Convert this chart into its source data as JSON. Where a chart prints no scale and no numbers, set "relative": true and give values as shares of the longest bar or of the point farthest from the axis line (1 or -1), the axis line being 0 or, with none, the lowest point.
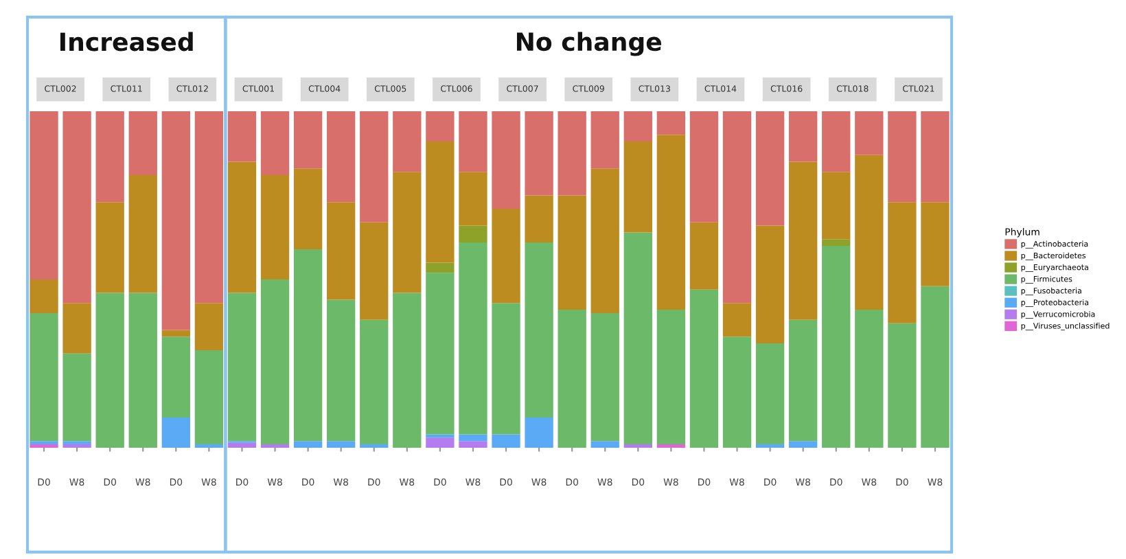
{
  "chart_data": {
    "type": "bar",
    "stacked": true,
    "relative": true,
    "legend": "right",
    "legend_title": "Phylum",
    "categories": [
      "D0",
      "W8",
      "D0",
      "W8",
      "D0",
      "W8",
      "D0",
      "W8",
      "D0",
      "W8",
      "D0",
      "W8",
      "D0",
      "W8",
      "D0",
      "W8",
      "D0",
      "W8",
      "D0",
      "W8",
      "D0",
      "W8",
      "D0",
      "W8",
      "D0",
      "W8",
      "D0",
      "W8"
    ],
    "annotations": [
      "Increased",
      "No change",
      "CTL002",
      "CTL011",
      "CTL012",
      "CTL001",
      "CTL004",
      "CTL005",
      "CTL006",
      "CTL007",
      "CTL009",
      "CTL013",
      "CTL014",
      "CTL016",
      "CTL018",
      "CTL021"
    ],
    "series": [
      {
        "name": "p__Viruses_unclassified",
        "color": "#e066d6",
        "values": [
          0.01,
          null,
          null,
          null,
          null,
          null,
          null,
          null,
          null,
          null,
          null,
          null,
          null,
          null,
          null,
          null,
          null,
          null,
          null,
          0.01,
          null,
          null,
          null,
          null,
          null,
          null,
          null,
          null
        ]
      },
      {
        "name": "p__Verrucomicrobia",
        "color": "#b57cf0",
        "values": [
          null,
          0.01,
          null,
          null,
          null,
          null,
          0.015,
          0.01,
          null,
          null,
          null,
          null,
          0.03,
          0.02,
          null,
          null,
          null,
          null,
          0.01,
          null,
          null,
          null,
          null,
          null,
          null,
          null,
          null,
          null
        ]
      },
      {
        "name": "p__Proteobacteria",
        "color": "#5aaaf5",
        "values": [
          0.01,
          0.01,
          null,
          null,
          0.09,
          0.01,
          0.005,
          null,
          0.02,
          0.02,
          0.01,
          null,
          0.01,
          0.02,
          0.04,
          0.09,
          null,
          0.02,
          null,
          null,
          null,
          null,
          0.01,
          0.02,
          null,
          null,
          null,
          null
        ]
      },
      {
        "name": "p__Fusobacteria",
        "color": "#5bbfbf",
        "values": [
          null,
          null,
          null,
          null,
          null,
          null,
          null,
          null,
          null,
          null,
          null,
          null,
          null,
          null,
          null,
          null,
          null,
          null,
          null,
          null,
          null,
          null,
          null,
          null,
          null,
          null,
          null,
          null
        ]
      },
      {
        "name": "p__Firmicutes",
        "color": "#6db96a",
        "values": [
          0.38,
          0.26,
          0.46,
          0.46,
          0.24,
          0.28,
          0.44,
          0.49,
          0.57,
          0.42,
          0.37,
          0.46,
          0.48,
          0.57,
          0.39,
          0.52,
          0.41,
          0.38,
          0.63,
          0.4,
          0.47,
          0.33,
          0.3,
          0.36,
          0.6,
          0.41,
          0.37,
          0.48
        ]
      },
      {
        "name": "p__Euryarchaeota",
        "color": "#8ea22a",
        "values": [
          null,
          null,
          null,
          null,
          null,
          null,
          null,
          null,
          null,
          null,
          null,
          null,
          0.03,
          0.05,
          null,
          null,
          null,
          null,
          null,
          null,
          null,
          null,
          null,
          null,
          0.02,
          null,
          null,
          null
        ]
      },
      {
        "name": "p__Bacteroidetes",
        "color": "#bd8c21",
        "values": [
          0.1,
          0.15,
          0.27,
          0.35,
          0.02,
          0.14,
          0.39,
          0.31,
          0.24,
          0.29,
          0.29,
          0.36,
          0.36,
          0.16,
          0.28,
          0.14,
          0.34,
          0.43,
          0.27,
          0.52,
          0.2,
          0.1,
          0.35,
          0.47,
          0.2,
          0.46,
          0.36,
          0.25
        ]
      },
      {
        "name": "p__Actinobacteria",
        "color": "#d96f6a",
        "values": [
          0.5,
          0.57,
          0.27,
          0.19,
          0.65,
          0.57,
          0.15,
          0.19,
          0.17,
          0.27,
          0.33,
          0.18,
          0.09,
          0.18,
          0.29,
          0.25,
          0.25,
          0.17,
          0.09,
          0.07,
          0.33,
          0.57,
          0.34,
          0.15,
          0.18,
          0.13,
          0.27,
          0.27
        ]
      }
    ]
  }
}
